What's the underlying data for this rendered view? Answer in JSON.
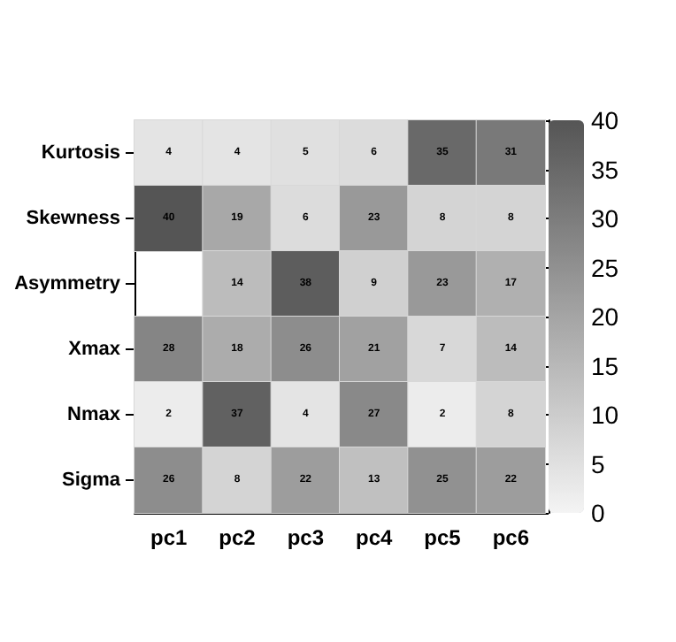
{
  "chart_data": {
    "type": "heatmap",
    "categories": [
      "pc1",
      "pc2",
      "pc3",
      "pc4",
      "pc5",
      "pc6"
    ],
    "y_categories": [
      "Kurtosis",
      "Skewness",
      "Asymmetry",
      "Xmax",
      "Nmax",
      "Sigma"
    ],
    "cells": [
      [
        4,
        4,
        5,
        6,
        35,
        31
      ],
      [
        40,
        19,
        6,
        23,
        8,
        8
      ],
      [
        null,
        14,
        38,
        9,
        23,
        17
      ],
      [
        28,
        18,
        26,
        21,
        7,
        14
      ],
      [
        2,
        37,
        4,
        27,
        2,
        8
      ],
      [
        26,
        8,
        22,
        13,
        25,
        22
      ]
    ],
    "clim": [
      0,
      40
    ],
    "cticks": [
      0,
      5,
      10,
      15,
      20,
      25,
      30,
      35,
      40
    ],
    "data_labels": true
  }
}
